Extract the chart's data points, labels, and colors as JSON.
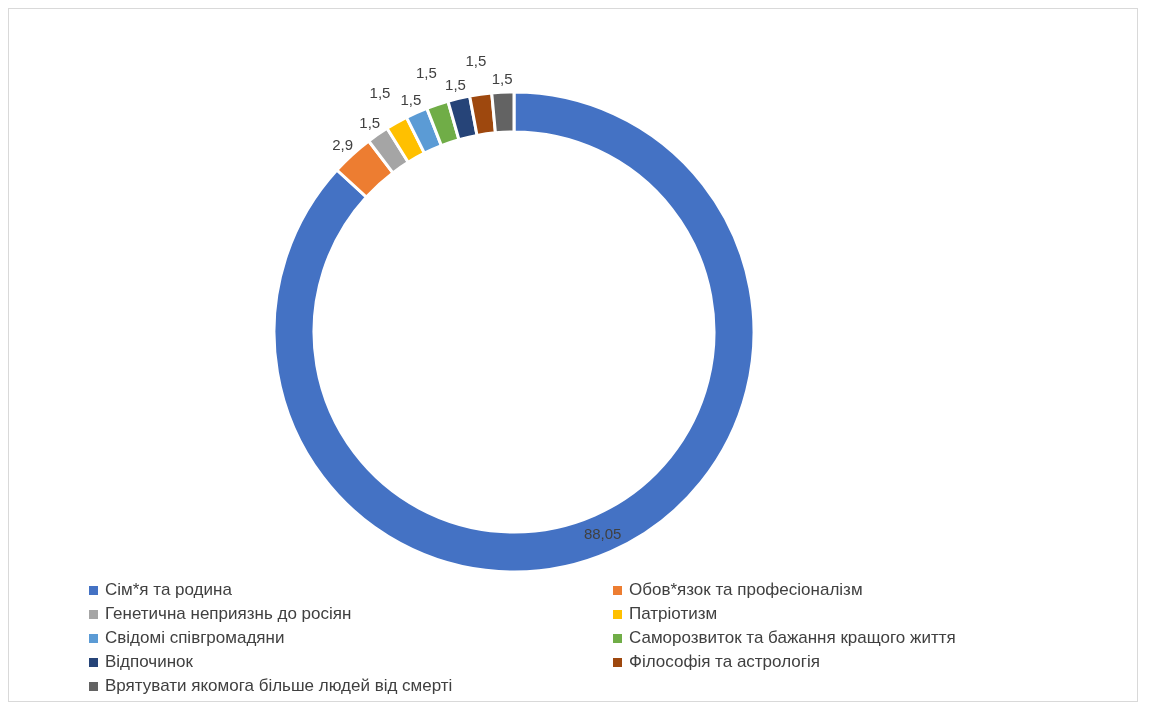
{
  "chart_data": {
    "type": "donut",
    "categories": [
      "Сім*я та родина",
      "Обов*язок та професіоналізм",
      "Генетична неприязнь до росіян",
      "Патріотизм",
      "Свідомі співгромадяни",
      "Саморозвиток та бажання кращого життя",
      "Відпочинок",
      "Філософія та астрологія",
      "Врятувати якомога більше людей від смерті"
    ],
    "values": [
      88.05,
      2.9,
      1.5,
      1.5,
      1.5,
      1.5,
      1.5,
      1.5,
      1.5
    ],
    "value_labels": [
      "88,05",
      "2,9",
      "1,5",
      "1,5",
      "1,5",
      "1,5",
      "1,5",
      "1,5",
      "1,5"
    ],
    "colors": [
      "#4472c4",
      "#ed7d31",
      "#a5a5a5",
      "#ffc000",
      "#5b9bd5",
      "#70ad47",
      "#264478",
      "#9e480e",
      "#636363"
    ],
    "legend": "bottom"
  }
}
